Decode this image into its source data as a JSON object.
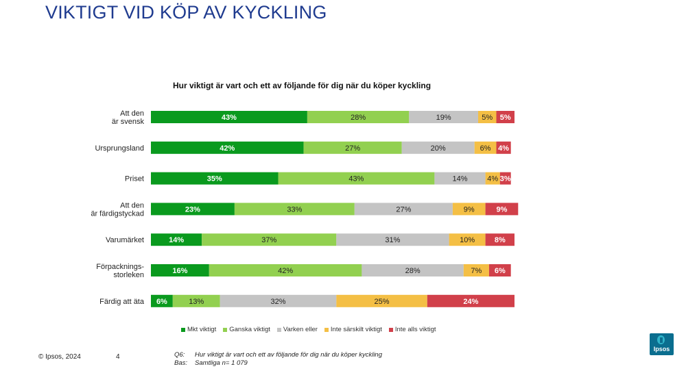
{
  "page": {
    "title": "VIKTIGT VID KÖP AV KYCKLING",
    "copyright": "© Ipsos, 2024",
    "page_number": "4",
    "footnote": {
      "q_label": "Q6:",
      "q_text": "Hur viktigt är vart och ett av följande för dig när du köper kyckling",
      "base_label": "Bas:",
      "base_text": "Samtliga n= 1 079"
    },
    "logo_text": "Ipsos"
  },
  "chart_data": {
    "type": "bar",
    "orientation": "horizontal",
    "stacked": true,
    "title": "Hur viktigt är vart och ett av följande för dig när du köper kyckling",
    "categories": [
      "Att den är svensk",
      "Ursprungsland",
      "Priset",
      "Att den är färdigstyckad",
      "Varumärket",
      "Förpacknings- storleken",
      "Färdig att äta"
    ],
    "series": [
      {
        "name": "Mkt viktigt",
        "color": "#0a9a1e",
        "label_color": "#ffffff",
        "values": [
          43,
          42,
          35,
          23,
          14,
          16,
          6
        ]
      },
      {
        "name": "Ganska viktigt",
        "color": "#92d050",
        "label_color": "#222222",
        "values": [
          28,
          27,
          43,
          33,
          37,
          42,
          13
        ]
      },
      {
        "name": "Varken eller",
        "color": "#c4c4c4",
        "label_color": "#222222",
        "values": [
          19,
          20,
          14,
          27,
          31,
          28,
          32
        ]
      },
      {
        "name": "Inte särskilt viktigt",
        "color": "#f4bf45",
        "label_color": "#222222",
        "values": [
          5,
          6,
          4,
          9,
          10,
          7,
          25
        ]
      },
      {
        "name": "Inte alls viktigt",
        "color": "#d1404a",
        "label_color": "#ffffff",
        "values": [
          5,
          4,
          3,
          9,
          8,
          6,
          24
        ]
      }
    ],
    "value_suffix": "%",
    "legend_position": "bottom",
    "grid": false
  }
}
